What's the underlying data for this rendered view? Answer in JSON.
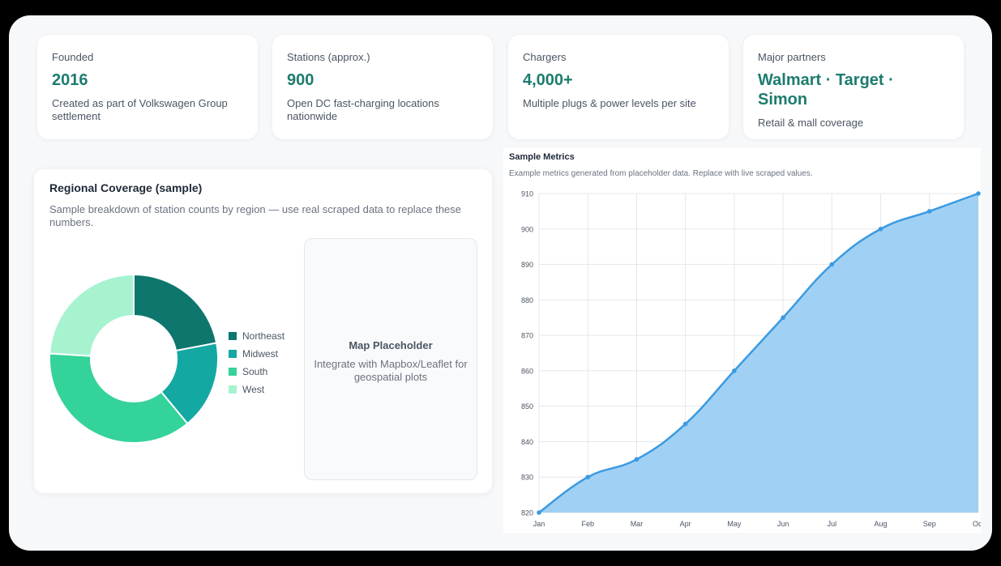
{
  "stats": [
    {
      "label": "Founded",
      "value": "2016",
      "desc": "Created as part of Volkswagen Group settlement"
    },
    {
      "label": "Stations (approx.)",
      "value": "900",
      "desc": "Open DC fast-charging locations nationwide"
    },
    {
      "label": "Chargers",
      "value": "4,000+",
      "desc": "Multiple plugs & power levels per site"
    },
    {
      "label": "Major partners",
      "value": "Walmart · Target · Simon",
      "desc": "Retail & mall coverage"
    }
  ],
  "regional": {
    "title": "Regional Coverage (sample)",
    "subtitle": "Sample breakdown of station counts by region — use real scraped data to replace these numbers.",
    "map_title": "Map Placeholder",
    "map_subtitle": "Integrate with Mapbox/Leaflet for geospatial plots"
  },
  "metrics": {
    "title": "Sample Metrics",
    "subtitle": "Example metrics generated from placeholder data. Replace with live scraped values."
  },
  "chart_data": [
    {
      "type": "pie",
      "donut": true,
      "categories": [
        "Northeast",
        "Midwest",
        "South",
        "West"
      ],
      "values": [
        22,
        17,
        37,
        24
      ],
      "colors": [
        "#0f766e",
        "#14a8a3",
        "#34d399",
        "#a7f3d0"
      ],
      "legend": "right"
    },
    {
      "type": "area",
      "x": [
        "Jan",
        "Feb",
        "Mar",
        "Apr",
        "May",
        "Jun",
        "Jul",
        "Aug",
        "Sep",
        "Oct"
      ],
      "values": [
        820,
        830,
        835,
        845,
        860,
        875,
        890,
        900,
        905,
        910
      ],
      "ylim": [
        820,
        910
      ],
      "yticks": [
        820,
        830,
        840,
        850,
        860,
        870,
        880,
        890,
        900,
        910
      ],
      "grid": true,
      "line_color": "#3b9ae1",
      "fill_color": "#9bcff3"
    }
  ]
}
